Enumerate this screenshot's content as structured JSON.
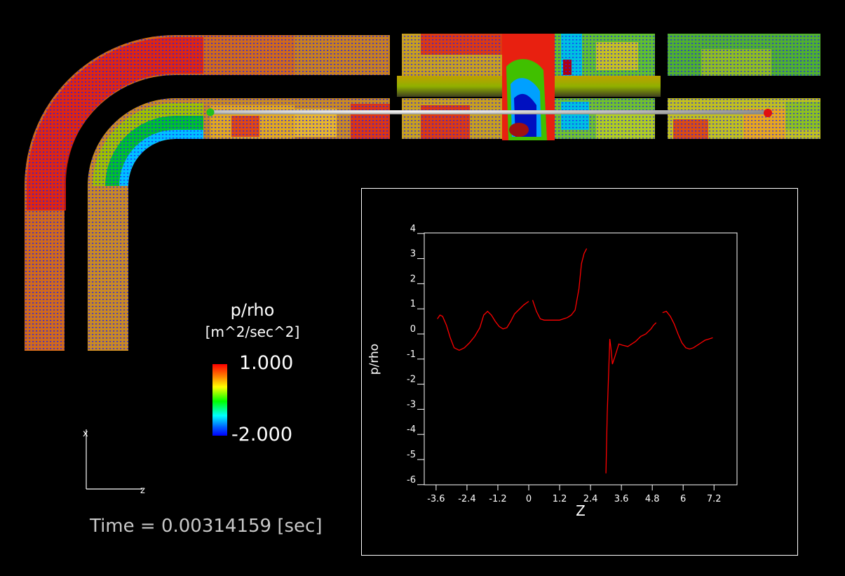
{
  "legend": {
    "title": "p/rho",
    "units": "[m^2/sec^2]",
    "max_label": "1.000",
    "min_label": "-2.000"
  },
  "time_label": "Time = 0.00314159 [sec]",
  "triad": {
    "x_label": "x",
    "z_label": "z"
  },
  "colors": {
    "background": "#000000",
    "plot_line": "#ff0000",
    "frame": "#ffffff"
  },
  "chart_data": {
    "type": "line",
    "xlabel": "Z",
    "ylabel": "p/rho",
    "xlim": [
      -3.9,
      7.8
    ],
    "ylim": [
      -6,
      4
    ],
    "x_ticks": [
      -3.6,
      -2.4,
      -1.2,
      0,
      1.2,
      2.4,
      3.6,
      4.8,
      6,
      7.2
    ],
    "x_tick_labels": [
      "-3.6",
      "-2.4",
      "-1.2",
      "0",
      "1.2",
      "2.4",
      "3.6",
      "4.8",
      "6",
      "7.2"
    ],
    "y_ticks": [
      4,
      3,
      2,
      1,
      0,
      -1,
      -2,
      -3,
      -4,
      -5,
      -6
    ],
    "y_tick_labels": [
      "4",
      "3",
      "2",
      "1",
      "0",
      "-1",
      "-2",
      "-3",
      "-4",
      "-5",
      "-6"
    ],
    "segments": [
      {
        "x": [
          -3.55,
          -3.45,
          -3.35,
          -3.2,
          -3.05,
          -2.9,
          -2.7,
          -2.5,
          -2.3,
          -2.1,
          -1.9,
          -1.75,
          -1.6,
          -1.45,
          -1.3,
          -1.15,
          -1.0,
          -0.85,
          -0.7,
          -0.55,
          -0.4,
          -0.2,
          0.0
        ],
        "y": [
          0.6,
          0.75,
          0.7,
          0.35,
          -0.15,
          -0.55,
          -0.65,
          -0.55,
          -0.35,
          -0.1,
          0.25,
          0.75,
          0.9,
          0.75,
          0.5,
          0.3,
          0.2,
          0.25,
          0.5,
          0.8,
          0.95,
          1.15,
          1.3
        ]
      },
      {
        "x": [
          0.15,
          0.3,
          0.45,
          0.6,
          0.8,
          1.0,
          1.2,
          1.35,
          1.5,
          1.65,
          1.8,
          1.95,
          2.05,
          2.15,
          2.25
        ],
        "y": [
          1.35,
          0.9,
          0.6,
          0.55,
          0.55,
          0.55,
          0.55,
          0.6,
          0.65,
          0.75,
          0.95,
          1.8,
          2.8,
          3.2,
          3.4
        ]
      },
      {
        "x": [
          3.0,
          3.05,
          3.15,
          3.2,
          3.25,
          3.35,
          3.5,
          3.65,
          3.85,
          4.0,
          4.15,
          4.35,
          4.55,
          4.75,
          4.85,
          4.95
        ],
        "y": [
          -5.55,
          -3.2,
          -0.2,
          -0.6,
          -1.2,
          -0.9,
          -0.4,
          -0.45,
          -0.5,
          -0.4,
          -0.3,
          -0.1,
          0.0,
          0.2,
          0.35,
          0.45
        ]
      },
      {
        "x": [
          5.2,
          5.35,
          5.5,
          5.65,
          5.8,
          5.95,
          6.1,
          6.25,
          6.4,
          6.55,
          6.7,
          6.85,
          7.0,
          7.15
        ],
        "y": [
          0.85,
          0.9,
          0.7,
          0.4,
          0.0,
          -0.35,
          -0.55,
          -0.6,
          -0.55,
          -0.45,
          -0.35,
          -0.25,
          -0.2,
          -0.15
        ]
      }
    ]
  }
}
